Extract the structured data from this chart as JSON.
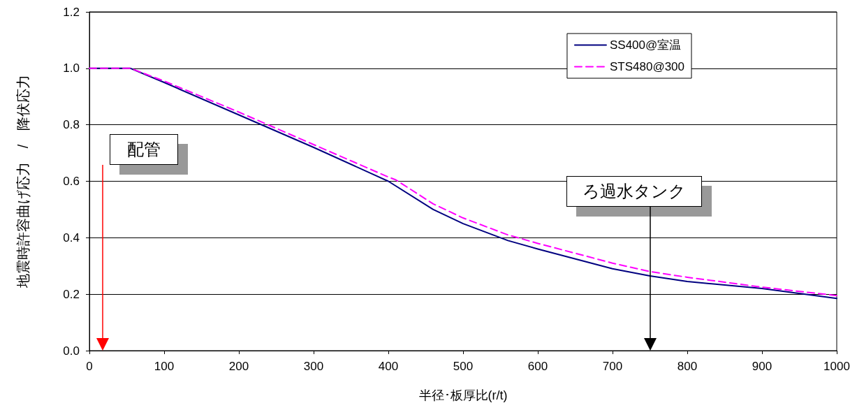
{
  "chart_data": {
    "type": "line",
    "xlabel": "半径･板厚比(r/t)",
    "ylabel": "地震時許容曲げ応力　/　降伏応力",
    "series": [
      {
        "name": "SS400@室温",
        "color": "#000080",
        "line_style": "solid",
        "x": [
          0,
          55,
          100,
          200,
          300,
          400,
          460,
          500,
          560,
          600,
          700,
          750,
          800,
          900,
          1000
        ],
        "values": [
          1.0,
          1.0,
          0.95,
          0.835,
          0.72,
          0.6,
          0.5,
          0.45,
          0.39,
          0.36,
          0.29,
          0.265,
          0.245,
          0.22,
          0.185
        ]
      },
      {
        "name": "STS480@300",
        "color": "#ff00ff",
        "line_style": "dashed",
        "x": [
          0,
          55,
          100,
          200,
          300,
          400,
          410,
          460,
          500,
          560,
          600,
          700,
          750,
          800,
          900,
          1000
        ],
        "values": [
          1.0,
          1.0,
          0.955,
          0.845,
          0.73,
          0.615,
          0.605,
          0.52,
          0.47,
          0.41,
          0.38,
          0.31,
          0.28,
          0.26,
          0.225,
          0.195
        ]
      }
    ],
    "annotations": [
      "配管",
      "ろ過水タンク"
    ],
    "xlim": [
      0,
      1000
    ],
    "xticks": [
      0,
      100,
      200,
      300,
      400,
      500,
      600,
      700,
      800,
      900,
      1000
    ],
    "ylim": [
      0,
      1.2
    ],
    "yticks": [
      {
        "value": 0,
        "label": "0.0"
      },
      {
        "value": 0.2,
        "label": "0.2"
      },
      {
        "value": 0.4,
        "label": "0.4"
      },
      {
        "value": 0.6,
        "label": "0.6"
      },
      {
        "value": 0.8,
        "label": "0.8"
      },
      {
        "value": 1,
        "label": "1.0"
      },
      {
        "value": 1.2,
        "label": "1.2"
      }
    ],
    "grid": "y",
    "legend": "top right",
    "marker": "none"
  }
}
